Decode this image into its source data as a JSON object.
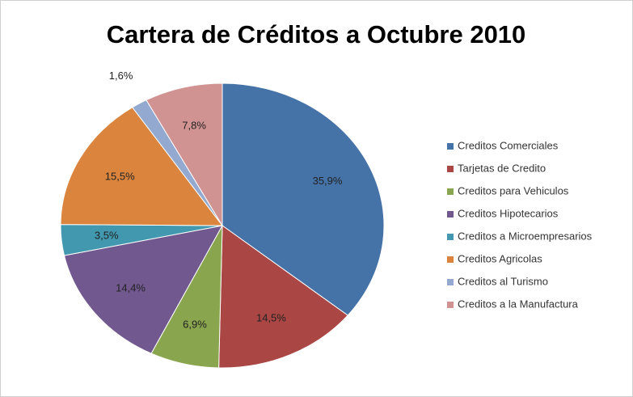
{
  "chart_data": {
    "type": "pie",
    "title": "Cartera de Créditos a Octubre 2010",
    "categories": [
      "Creditos Comerciales",
      "Tarjetas de Credito",
      "Creditos para Vehiculos",
      "Creditos Hipotecarios",
      "Creditos a Microempresarios",
      "Creditos Agricolas",
      "Creditos al Turismo",
      "Creditos a la Manufactura"
    ],
    "values": [
      35.9,
      14.5,
      6.9,
      14.4,
      3.5,
      15.5,
      1.6,
      7.8
    ],
    "value_labels": [
      "35,9%",
      "14,5%",
      "6,9%",
      "14,4%",
      "3,5%",
      "15,5%",
      "1,6%",
      "7,8%"
    ],
    "colors": [
      "#4572a7",
      "#aa4643",
      "#89a54e",
      "#71588f",
      "#4198af",
      "#db843d",
      "#93a9cf",
      "#d19392"
    ],
    "legend": "right"
  }
}
